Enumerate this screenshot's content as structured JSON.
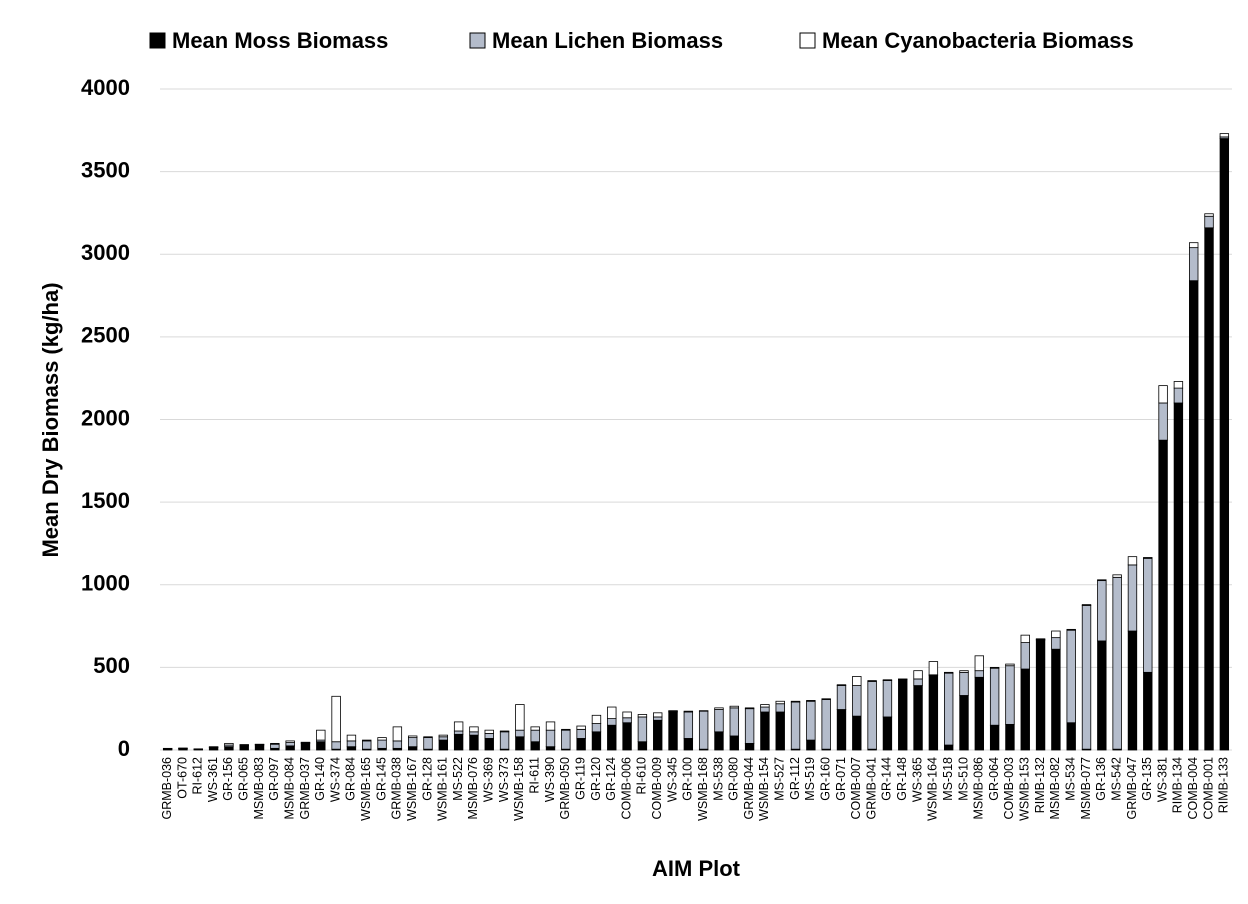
{
  "chart_data": {
    "type": "stacked_bar",
    "x_label": "AIM Plot",
    "y_label": "Mean Dry Biomass (kg/ha)",
    "categories": [
      "GRMB-036",
      "OT-670",
      "RI-612",
      "WS-361",
      "GR-156",
      "GR-065",
      "MSMB-083",
      "GR-097",
      "MSMB-084",
      "GRMB-037",
      "GR-140",
      "WS-374",
      "GR-084",
      "WSMB-165",
      "GR-145",
      "GRMB-038",
      "WSMB-167",
      "GR-128",
      "WSMB-161",
      "MS-522",
      "MSMB-076",
      "WS-369",
      "WS-373",
      "WSMB-158",
      "RI-611",
      "WS-390",
      "GRMB-050",
      "GR-119",
      "GR-120",
      "GR-124",
      "COMB-006",
      "RI-610",
      "COMB-009",
      "WS-345",
      "GR-100",
      "WSMB-168",
      "MS-538",
      "GR-080",
      "GRMB-044",
      "WSMB-154",
      "MS-527",
      "GR-112",
      "MS-519",
      "GR-160",
      "GR-071",
      "COMB-007",
      "GRMB-041",
      "GR-144",
      "GR-148",
      "WS-365",
      "WSMB-164",
      "MS-518",
      "MS-510",
      "MSMB-086",
      "GR-064",
      "COMB-003",
      "WSMB-153",
      "RIMB-132",
      "MSMB-082",
      "MS-534",
      "MSMB-077",
      "GR-136",
      "MS-542",
      "GRMB-047",
      "GR-135",
      "WS-381",
      "RIMB-134",
      "COMB-004",
      "COMB-001",
      "RIMB-133"
    ],
    "series": [
      {
        "name": "Mean Moss Biomass",
        "color": "#000000",
        "values": [
          5,
          8,
          3,
          15,
          20,
          25,
          30,
          10,
          25,
          40,
          50,
          5,
          20,
          5,
          10,
          10,
          20,
          5,
          60,
          95,
          90,
          70,
          5,
          80,
          50,
          20,
          5,
          70,
          110,
          150,
          165,
          50,
          180,
          230,
          70,
          5,
          110,
          85,
          40,
          230,
          230,
          5,
          60,
          5,
          245,
          205,
          5,
          200,
          425,
          390,
          450,
          30,
          330,
          440,
          150,
          155,
          490,
          665,
          610,
          165,
          5,
          660,
          5,
          720,
          470,
          1875,
          2100,
          2840,
          3160,
          3700
        ]
      },
      {
        "name": "Mean Lichen Biomass",
        "color": "#b4bccb",
        "values": [
          3,
          2,
          2,
          3,
          10,
          5,
          3,
          25,
          20,
          5,
          10,
          45,
          35,
          50,
          50,
          45,
          55,
          70,
          20,
          20,
          20,
          30,
          105,
          40,
          70,
          100,
          115,
          55,
          50,
          40,
          30,
          150,
          20,
          5,
          160,
          230,
          135,
          170,
          210,
          30,
          50,
          285,
          235,
          300,
          145,
          185,
          410,
          220,
          3,
          40,
          5,
          435,
          140,
          40,
          345,
          355,
          160,
          5,
          70,
          560,
          870,
          365,
          1040,
          400,
          690,
          225,
          90,
          200,
          70,
          10
        ]
      },
      {
        "name": "Mean Cyanobacteria Biomass",
        "color": "#ffffff",
        "values": [
          2,
          2,
          2,
          2,
          10,
          3,
          2,
          5,
          10,
          2,
          60,
          275,
          35,
          5,
          15,
          85,
          10,
          5,
          10,
          55,
          30,
          20,
          5,
          155,
          20,
          50,
          5,
          20,
          50,
          70,
          35,
          15,
          25,
          3,
          5,
          3,
          10,
          10,
          5,
          15,
          15,
          5,
          5,
          5,
          5,
          55,
          5,
          5,
          2,
          50,
          80,
          5,
          10,
          90,
          5,
          10,
          45,
          3,
          40,
          5,
          5,
          5,
          15,
          50,
          5,
          105,
          40,
          30,
          15,
          20
        ]
      }
    ],
    "ylim": [
      0,
      4000
    ],
    "yticks": [
      0,
      500,
      1000,
      1500,
      2000,
      2500,
      3000,
      3500,
      4000
    ],
    "grid": true
  }
}
